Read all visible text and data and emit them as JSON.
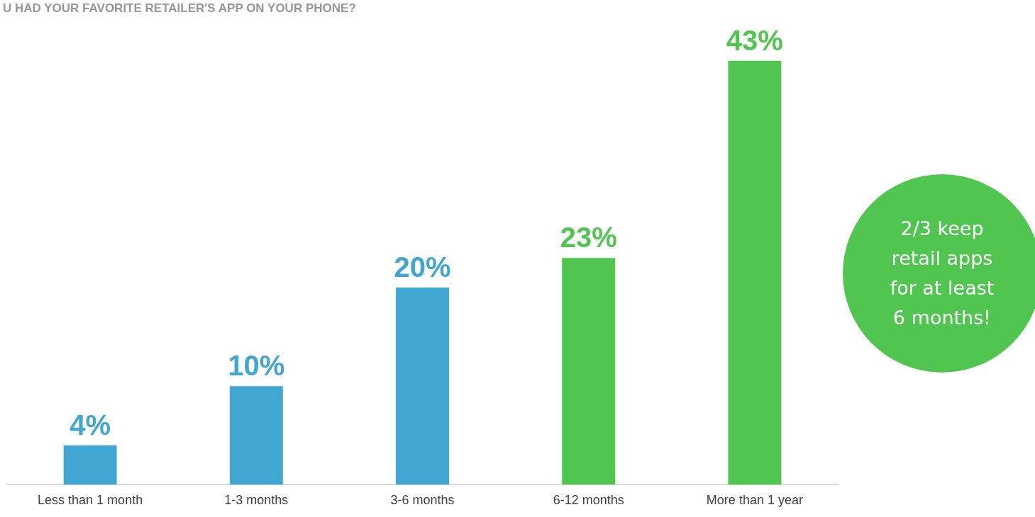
{
  "chart_data": {
    "type": "bar",
    "title": "U HAD YOUR FAVORITE RETAILER'S APP ON YOUR PHONE?",
    "categories": [
      "Less than 1 month",
      "1-3 months",
      "3-6 months",
      "6-12 months",
      "More than 1 year"
    ],
    "values": [
      4,
      10,
      20,
      23,
      43
    ],
    "colors": [
      "#41a6d2",
      "#41a6d2",
      "#41a6d2",
      "#50c650",
      "#50c650"
    ],
    "value_labels": [
      "4%",
      "10%",
      "20%",
      "23%",
      "43%"
    ],
    "annotations": [
      "2/3 keep retail apps for at least 6 months!"
    ],
    "grid": false,
    "legend": false
  }
}
